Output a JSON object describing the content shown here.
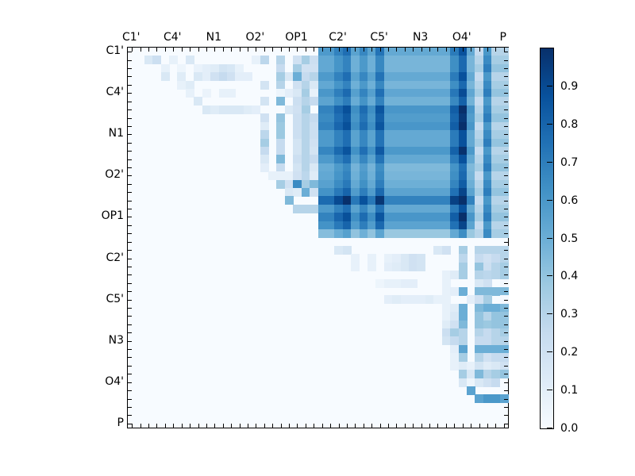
{
  "chart_data": {
    "type": "heatmap",
    "title": "",
    "xlabel": "",
    "ylabel": "",
    "n": 46,
    "tick_labels": [
      "C1'",
      "C4'",
      "N1",
      "O2'",
      "OP1",
      "C2'",
      "C5'",
      "N3",
      "O4'",
      "P"
    ],
    "tick_label_positions": [
      0,
      5,
      10,
      15,
      20,
      25,
      30,
      35,
      40,
      45
    ],
    "xaxis_position": "top",
    "colormap": "Blues",
    "colorbar": {
      "min": 0.0,
      "max": 1.0,
      "ticks": [
        "0.0",
        "0.1",
        "0.2",
        "0.3",
        "0.4",
        "0.5",
        "0.6",
        "0.7",
        "0.8",
        "0.9"
      ]
    },
    "description": "46x46 matrix; rows 0-22 show high values (0.5-1.0) in columns 23-41, columns 42-45 moderate (0.2-0.5); upper-right triangle of lower rows moderate-low; lower-left triangle ~0.",
    "block_rows": 23,
    "block_col_start": 23,
    "dark_col_profile": [
      0.62,
      0.62,
      0.72,
      0.8,
      0.58,
      0.7,
      0.58,
      0.78,
      0.55,
      0.55,
      0.55,
      0.55,
      0.55,
      0.55,
      0.55,
      0.55,
      0.75,
      0.92,
      0.55,
      0.25,
      0.6,
      0.3,
      0.3
    ],
    "dark_row_profile": [
      0.95,
      0.85,
      0.85,
      0.95,
      0.85,
      0.97,
      0.88,
      1.1,
      1.05,
      1.1,
      0.95,
      0.95,
      1.08,
      0.95,
      0.82,
      0.85,
      0.9,
      1.0,
      1.25,
      0.95,
      1.1,
      1.0,
      0.7
    ],
    "upper_light_rows": [
      {
        "row": 1,
        "cells": [
          [
            2,
            0.15
          ],
          [
            3,
            0.22
          ],
          [
            5,
            0.08
          ],
          [
            7,
            0.15
          ],
          [
            15,
            0.08
          ],
          [
            16,
            0.28
          ],
          [
            18,
            0.3
          ],
          [
            20,
            0.2
          ],
          [
            21,
            0.35
          ],
          [
            22,
            0.22
          ]
        ]
      },
      {
        "row": 2,
        "cells": [
          [
            4,
            0.08
          ],
          [
            6,
            0.05
          ],
          [
            8,
            0.07
          ],
          [
            9,
            0.1
          ],
          [
            10,
            0.12
          ],
          [
            11,
            0.18
          ],
          [
            12,
            0.16
          ],
          [
            13,
            0.08
          ],
          [
            18,
            0.25
          ],
          [
            20,
            0.35
          ],
          [
            21,
            0.2
          ],
          [
            22,
            0.2
          ]
        ]
      },
      {
        "row": 3,
        "cells": [
          [
            4,
            0.15
          ],
          [
            6,
            0.12
          ],
          [
            8,
            0.15
          ],
          [
            9,
            0.1
          ],
          [
            10,
            0.2
          ],
          [
            11,
            0.25
          ],
          [
            12,
            0.2
          ],
          [
            13,
            0.1
          ],
          [
            14,
            0.1
          ],
          [
            18,
            0.35
          ],
          [
            19,
            0.15
          ],
          [
            20,
            0.5
          ],
          [
            21,
            0.25
          ],
          [
            22,
            0.3
          ]
        ]
      },
      {
        "row": 4,
        "cells": [
          [
            6,
            0.08
          ],
          [
            7,
            0.12
          ],
          [
            16,
            0.18
          ],
          [
            18,
            0.3
          ],
          [
            20,
            0.2
          ],
          [
            21,
            0.3
          ],
          [
            22,
            0.15
          ]
        ]
      },
      {
        "row": 5,
        "cells": [
          [
            7,
            0.08
          ],
          [
            9,
            0.06
          ],
          [
            11,
            0.08
          ],
          [
            12,
            0.08
          ],
          [
            18,
            0.05
          ],
          [
            19,
            0.1
          ],
          [
            20,
            0.15
          ],
          [
            21,
            0.35
          ],
          [
            22,
            0.08
          ]
        ]
      },
      {
        "row": 6,
        "cells": [
          [
            8,
            0.15
          ],
          [
            16,
            0.18
          ],
          [
            18,
            0.45
          ],
          [
            20,
            0.22
          ],
          [
            21,
            0.3
          ],
          [
            22,
            0.25
          ]
        ]
      },
      {
        "row": 7,
        "cells": [
          [
            9,
            0.15
          ],
          [
            10,
            0.12
          ],
          [
            11,
            0.15
          ],
          [
            12,
            0.15
          ],
          [
            13,
            0.15
          ],
          [
            14,
            0.12
          ],
          [
            15,
            0.1
          ],
          [
            19,
            0.15
          ],
          [
            20,
            0.2
          ],
          [
            21,
            0.35
          ]
        ]
      },
      {
        "row": 8,
        "cells": [
          [
            16,
            0.2
          ],
          [
            18,
            0.4
          ],
          [
            20,
            0.22
          ],
          [
            21,
            0.3
          ],
          [
            22,
            0.25
          ]
        ]
      },
      {
        "row": 9,
        "cells": [
          [
            16,
            0.12
          ],
          [
            18,
            0.38
          ],
          [
            20,
            0.22
          ],
          [
            21,
            0.3
          ],
          [
            22,
            0.22
          ]
        ]
      },
      {
        "row": 10,
        "cells": [
          [
            16,
            0.28
          ],
          [
            18,
            0.38
          ],
          [
            20,
            0.22
          ],
          [
            21,
            0.3
          ],
          [
            22,
            0.22
          ]
        ]
      },
      {
        "row": 11,
        "cells": [
          [
            16,
            0.35
          ],
          [
            18,
            0.25
          ],
          [
            20,
            0.18
          ],
          [
            21,
            0.3
          ],
          [
            22,
            0.2
          ]
        ]
      },
      {
        "row": 12,
        "cells": [
          [
            16,
            0.25
          ],
          [
            18,
            0.25
          ],
          [
            20,
            0.18
          ],
          [
            21,
            0.3
          ],
          [
            22,
            0.18
          ]
        ]
      },
      {
        "row": 13,
        "cells": [
          [
            16,
            0.15
          ],
          [
            18,
            0.45
          ],
          [
            20,
            0.22
          ],
          [
            21,
            0.3
          ],
          [
            22,
            0.25
          ]
        ]
      },
      {
        "row": 14,
        "cells": [
          [
            16,
            0.1
          ],
          [
            18,
            0.25
          ],
          [
            20,
            0.18
          ],
          [
            21,
            0.3
          ],
          [
            22,
            0.15
          ]
        ]
      },
      {
        "row": 15,
        "cells": [
          [
            17,
            0.08
          ],
          [
            18,
            0.08
          ],
          [
            19,
            0.08
          ],
          [
            20,
            0.2
          ],
          [
            21,
            0.28
          ],
          [
            22,
            0.12
          ]
        ]
      },
      {
        "row": 16,
        "cells": [
          [
            18,
            0.35
          ],
          [
            19,
            0.2
          ],
          [
            20,
            0.65
          ],
          [
            21,
            0.35
          ],
          [
            22,
            0.45
          ]
        ]
      },
      {
        "row": 17,
        "cells": [
          [
            19,
            0.15
          ],
          [
            20,
            0.12
          ],
          [
            21,
            0.5
          ],
          [
            22,
            0.2
          ]
        ]
      },
      {
        "row": 18,
        "cells": [
          [
            19,
            0.45
          ]
        ]
      },
      {
        "row": 19,
        "cells": [
          [
            20,
            0.3
          ],
          [
            21,
            0.3
          ],
          [
            22,
            0.3
          ]
        ]
      }
    ],
    "lower_right_rows": [
      {
        "row": 24,
        "cells": [
          [
            25,
            0.15
          ],
          [
            26,
            0.18
          ],
          [
            37,
            0.15
          ],
          [
            38,
            0.2
          ],
          [
            40,
            0.35
          ],
          [
            42,
            0.3
          ],
          [
            43,
            0.3
          ],
          [
            44,
            0.3
          ],
          [
            45,
            0.3
          ]
        ]
      },
      {
        "row": 25,
        "cells": [
          [
            27,
            0.08
          ],
          [
            29,
            0.08
          ],
          [
            31,
            0.08
          ],
          [
            32,
            0.1
          ],
          [
            33,
            0.15
          ],
          [
            34,
            0.2
          ],
          [
            35,
            0.18
          ],
          [
            40,
            0.28
          ],
          [
            42,
            0.25
          ],
          [
            43,
            0.2
          ],
          [
            44,
            0.25
          ],
          [
            45,
            0.3
          ]
        ]
      },
      {
        "row": 26,
        "cells": [
          [
            27,
            0.08
          ],
          [
            29,
            0.08
          ],
          [
            31,
            0.1
          ],
          [
            32,
            0.12
          ],
          [
            33,
            0.15
          ],
          [
            34,
            0.2
          ],
          [
            35,
            0.18
          ],
          [
            40,
            0.35
          ],
          [
            42,
            0.4
          ],
          [
            43,
            0.22
          ],
          [
            44,
            0.3
          ],
          [
            45,
            0.35
          ]
        ]
      },
      {
        "row": 27,
        "cells": [
          [
            38,
            0.08
          ],
          [
            39,
            0.12
          ],
          [
            40,
            0.35
          ],
          [
            42,
            0.3
          ],
          [
            43,
            0.28
          ],
          [
            44,
            0.3
          ],
          [
            45,
            0.35
          ]
        ]
      },
      {
        "row": 28,
        "cells": [
          [
            30,
            0.05
          ],
          [
            31,
            0.08
          ],
          [
            32,
            0.08
          ],
          [
            33,
            0.1
          ],
          [
            34,
            0.1
          ],
          [
            38,
            0.08
          ],
          [
            42,
            0.15
          ],
          [
            43,
            0.2
          ],
          [
            45,
            0.02
          ]
        ]
      },
      {
        "row": 29,
        "cells": [
          [
            38,
            0.08
          ],
          [
            39,
            0.1
          ],
          [
            40,
            0.5
          ],
          [
            42,
            0.45
          ],
          [
            43,
            0.45
          ],
          [
            44,
            0.45
          ],
          [
            45,
            0.45
          ]
        ]
      },
      {
        "row": 30,
        "cells": [
          [
            31,
            0.1
          ],
          [
            32,
            0.12
          ],
          [
            33,
            0.1
          ],
          [
            34,
            0.1
          ],
          [
            35,
            0.1
          ],
          [
            36,
            0.12
          ],
          [
            37,
            0.08
          ],
          [
            38,
            0.08
          ],
          [
            41,
            0.1
          ],
          [
            42,
            0.2
          ],
          [
            43,
            0.35
          ],
          [
            45,
            0.02
          ]
        ]
      },
      {
        "row": 31,
        "cells": [
          [
            38,
            0.08
          ],
          [
            39,
            0.12
          ],
          [
            40,
            0.5
          ],
          [
            42,
            0.45
          ],
          [
            43,
            0.5
          ],
          [
            44,
            0.5
          ],
          [
            45,
            0.45
          ]
        ]
      },
      {
        "row": 32,
        "cells": [
          [
            38,
            0.08
          ],
          [
            39,
            0.15
          ],
          [
            40,
            0.5
          ],
          [
            42,
            0.4
          ],
          [
            43,
            0.3
          ],
          [
            44,
            0.4
          ],
          [
            45,
            0.4
          ]
        ]
      },
      {
        "row": 33,
        "cells": [
          [
            38,
            0.12
          ],
          [
            39,
            0.2
          ],
          [
            40,
            0.45
          ],
          [
            42,
            0.4
          ],
          [
            43,
            0.38
          ],
          [
            44,
            0.4
          ],
          [
            45,
            0.4
          ]
        ]
      },
      {
        "row": 34,
        "cells": [
          [
            38,
            0.22
          ],
          [
            39,
            0.35
          ],
          [
            40,
            0.3
          ],
          [
            42,
            0.3
          ],
          [
            43,
            0.25
          ],
          [
            44,
            0.3
          ],
          [
            45,
            0.35
          ]
        ]
      },
      {
        "row": 35,
        "cells": [
          [
            38,
            0.18
          ],
          [
            39,
            0.25
          ],
          [
            40,
            0.3
          ],
          [
            42,
            0.25
          ],
          [
            43,
            0.25
          ],
          [
            44,
            0.3
          ],
          [
            45,
            0.3
          ]
        ]
      },
      {
        "row": 36,
        "cells": [
          [
            39,
            0.1
          ],
          [
            40,
            0.55
          ],
          [
            42,
            0.5
          ],
          [
            43,
            0.5
          ],
          [
            44,
            0.5
          ],
          [
            45,
            0.5
          ]
        ]
      },
      {
        "row": 37,
        "cells": [
          [
            39,
            0.08
          ],
          [
            40,
            0.35
          ],
          [
            42,
            0.3
          ],
          [
            43,
            0.2
          ],
          [
            44,
            0.25
          ],
          [
            45,
            0.25
          ]
        ]
      },
      {
        "row": 38,
        "cells": [
          [
            39,
            0.08
          ],
          [
            40,
            0.12
          ],
          [
            41,
            0.08
          ],
          [
            42,
            0.18
          ],
          [
            43,
            0.12
          ],
          [
            44,
            0.15
          ],
          [
            45,
            0.2
          ]
        ]
      },
      {
        "row": 39,
        "cells": [
          [
            40,
            0.35
          ],
          [
            41,
            0.15
          ],
          [
            42,
            0.45
          ],
          [
            43,
            0.3
          ],
          [
            44,
            0.35
          ],
          [
            45,
            0.4
          ]
        ]
      },
      {
        "row": 40,
        "cells": [
          [
            40,
            0.15
          ],
          [
            41,
            0.05
          ],
          [
            42,
            0.15
          ],
          [
            43,
            0.2
          ],
          [
            44,
            0.25
          ]
        ]
      },
      {
        "row": 41,
        "cells": [
          [
            41,
            0.55
          ]
        ]
      },
      {
        "row": 42,
        "cells": [
          [
            42,
            0.55
          ],
          [
            43,
            0.6
          ],
          [
            44,
            0.6
          ],
          [
            45,
            0.55
          ]
        ]
      }
    ]
  }
}
